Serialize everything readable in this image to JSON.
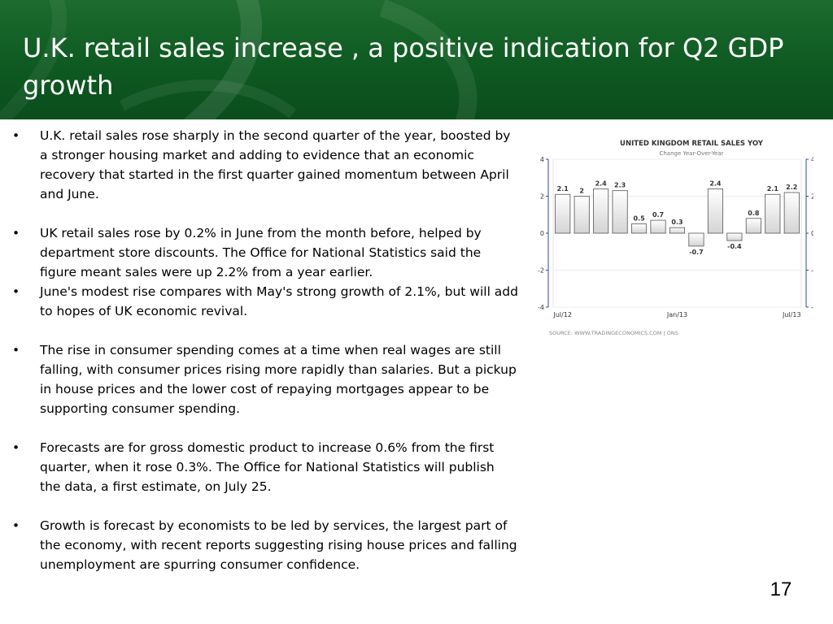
{
  "slide": {
    "title": "U.K. retail sales increase , a positive indication for Q2 GDP growth",
    "page_number": "17",
    "theme_color": "#0e5a22",
    "bullets": [
      "U.K. retail sales rose sharply in the second quarter of the year, boosted by a stronger housing market and adding to evidence that an economic recovery that started in the first quarter gained momentum between April and June.",
      "UK retail sales rose by 0.2% in June from the month before, helped by department store discounts. The Office for National Statistics said the figure meant sales were up 2.2% from a year earlier.",
      "June's modest rise compares with May's strong growth of 2.1%, but will add to hopes of UK economic revival.",
      "The rise in consumer spending comes at a time when real wages are still falling, with consumer prices rising more rapidly than salaries. But a pickup in house prices and the lower cost of repaying mortgages appear to be supporting consumer spending.",
      "Forecasts are for gross domestic product to increase 0.6% from the first quarter, when it rose 0.3%. The Office for National Statistics will publish the data, a first estimate, on July 25.",
      "Growth is forecast by economists to be led by services, the largest part of the economy, with recent reports suggesting rising house prices and falling unemployment are spurring consumer confidence."
    ]
  },
  "chart_data": {
    "type": "bar",
    "title": "UNITED KINGDOM RETAIL SALES YOY",
    "subtitle": "Change Year-Over-Year",
    "source": "SOURCE:  WWW.TRADINGECONOMICS.COM  |  ONS",
    "values": [
      2.1,
      2,
      2.4,
      2.3,
      0.5,
      0.7,
      0.3,
      -0.7,
      2.4,
      -0.4,
      0.8,
      2.1,
      2.2
    ],
    "labels": [
      "2.1",
      "2",
      "2.4",
      "2.3",
      "0.5",
      "0.7",
      "0.3",
      "-0.7",
      "2.4",
      "-0.4",
      "0.8",
      "2.1",
      "2.2"
    ],
    "x_tick_labels": [
      "Jul/12",
      "Jan/13",
      "Jul/13"
    ],
    "x_tick_index": [
      0,
      6,
      12
    ],
    "y_ticks": [
      4,
      2,
      0,
      -2,
      -4
    ],
    "ylim": [
      -4,
      4
    ],
    "grid": true,
    "axis_color": "#2b4aa0",
    "bar_fill_top": "#ffffff",
    "bar_fill_bottom": "#d4d4d4",
    "bar_stroke": "#555555"
  }
}
